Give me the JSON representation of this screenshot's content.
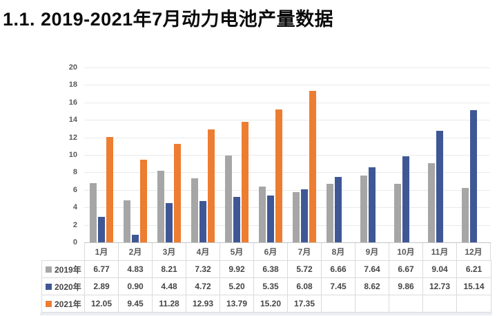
{
  "title": "1.1. 2019-2021年7月动力电池产量数据",
  "colors": {
    "s2019": "#a6a6a6",
    "s2020": "#3f5795",
    "s2021": "#ed7d31",
    "gridline": "#e9e9e9",
    "axis_line": "#c3c3c3",
    "table_border": "#dadada",
    "axis_text": "#595959",
    "table_text": "#454545"
  },
  "chart_data": {
    "type": "bar",
    "title": "",
    "xlabel": "",
    "ylabel": "",
    "categories": [
      "1月",
      "2月",
      "3月",
      "4月",
      "5月",
      "6月",
      "7月",
      "8月",
      "9月",
      "10月",
      "11月",
      "12月"
    ],
    "series": [
      {
        "name": "2019年",
        "color_key": "s2019",
        "values": [
          6.77,
          4.83,
          8.21,
          7.32,
          9.92,
          6.38,
          5.72,
          6.66,
          7.64,
          6.67,
          9.04,
          6.21
        ]
      },
      {
        "name": "2020年",
        "color_key": "s2020",
        "values": [
          2.89,
          0.9,
          4.48,
          4.72,
          5.2,
          5.35,
          6.08,
          7.45,
          8.62,
          9.86,
          12.73,
          15.14
        ]
      },
      {
        "name": "2021年",
        "color_key": "s2021",
        "values": [
          12.05,
          9.45,
          11.28,
          12.93,
          13.79,
          15.2,
          17.35,
          null,
          null,
          null,
          null,
          null
        ]
      }
    ],
    "ylim": [
      0,
      20
    ],
    "ytick_step": 2,
    "grid": true,
    "legend_position": "data-table",
    "value_format": "2-decimals"
  }
}
